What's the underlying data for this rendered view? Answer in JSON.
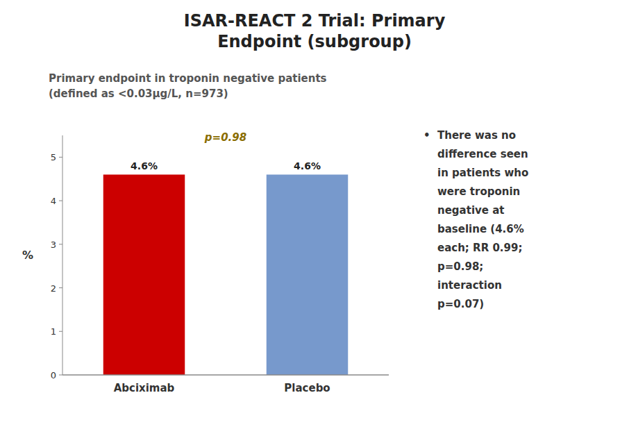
{
  "chart_data": {
    "type": "bar",
    "title": [
      "ISAR-REACT 2 Trial: Primary",
      "Endpoint (subgroup)"
    ],
    "subtitle": [
      "Primary endpoint in troponin negative patients",
      "(defined as <0.03μg/L, n=973)"
    ],
    "categories": [
      "Abciximab",
      "Placebo"
    ],
    "values": [
      4.6,
      4.6
    ],
    "value_labels": [
      "4.6%",
      "4.6%"
    ],
    "data_labels": true,
    "colors": [
      "#cc0000",
      "#7799cc"
    ],
    "ylabel": "%",
    "ylim": [
      0,
      5.5
    ],
    "yticks": [
      0,
      1,
      2,
      3,
      4,
      5
    ],
    "grid": false,
    "annotations": [
      "p=0.98"
    ],
    "note": [
      "•  There was no",
      "difference seen",
      "in patients who",
      "were troponin",
      "negative at",
      "baseline (4.6%",
      "each; RR 0.99;",
      "p=0.98;",
      "interaction",
      "p=0.07)"
    ]
  }
}
